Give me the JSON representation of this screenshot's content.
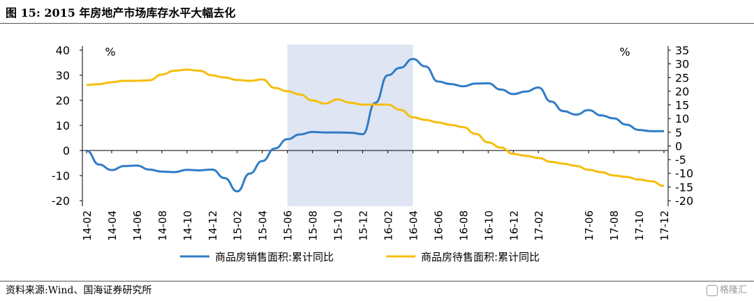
{
  "figure": {
    "title": "图 15:   2015 年房地产市场库存水平大幅去化",
    "source": "资料来源:Wind、国海证券研究所",
    "watermark": "格隆汇"
  },
  "chart_data": {
    "type": "line",
    "left_unit": "%",
    "right_unit": "%",
    "left_ylim": [
      -20,
      40
    ],
    "left_ticks": [
      -20,
      -10,
      0,
      10,
      20,
      30,
      40
    ],
    "right_ylim": [
      -20,
      35
    ],
    "right_ticks": [
      -20,
      -15,
      -10,
      -5,
      0,
      5,
      10,
      15,
      20,
      25,
      30,
      35
    ],
    "categories": [
      "14-02",
      "14-03",
      "14-04",
      "14-05",
      "14-06",
      "14-07",
      "14-08",
      "14-09",
      "14-10",
      "14-11",
      "14-12",
      "15-01",
      "15-02",
      "15-03",
      "15-04",
      "15-05",
      "15-06",
      "15-07",
      "15-08",
      "15-09",
      "15-10",
      "15-11",
      "15-12",
      "16-01",
      "16-02",
      "16-03",
      "16-04",
      "16-05",
      "16-06",
      "16-07",
      "16-08",
      "16-09",
      "16-10",
      "16-11",
      "16-12",
      "17-01",
      "17-02",
      "17-03",
      "17-04",
      "17-05",
      "17-06",
      "17-07",
      "17-08",
      "17-09",
      "17-10",
      "17-11",
      "17-12"
    ],
    "tick_labels": [
      "14-02",
      "14-04",
      "14-06",
      "14-08",
      "14-10",
      "14-12",
      "15-02",
      "15-04",
      "15-06",
      "15-08",
      "15-10",
      "15-12",
      "16-02",
      "16-04",
      "16-06",
      "16-08",
      "16-10",
      "16-12",
      "17-02",
      "17-06",
      "17-08",
      "17-10",
      "17-12"
    ],
    "tick_label_indices": [
      0,
      2,
      4,
      6,
      8,
      10,
      12,
      14,
      16,
      18,
      20,
      22,
      24,
      26,
      28,
      30,
      32,
      34,
      36,
      40,
      42,
      44,
      46
    ],
    "highlight_range": [
      "15-06",
      "16-04"
    ],
    "highlight_color": "#dfe5f3",
    "series": [
      {
        "name": "商品房销售面积:累计同比",
        "axis": "left",
        "color": "#2f7cc6",
        "values": [
          -0.1,
          -5.6,
          -7.8,
          -6.2,
          -6.0,
          -7.6,
          -8.4,
          -8.6,
          -7.7,
          -7.9,
          -7.6,
          -11.0,
          -16.3,
          -9.2,
          -4.2,
          0.8,
          4.5,
          6.4,
          7.4,
          7.2,
          7.2,
          7.1,
          6.5,
          19.0,
          30.0,
          33.0,
          36.5,
          33.5,
          27.5,
          26.5,
          25.6,
          26.7,
          26.8,
          24.3,
          22.5,
          23.5,
          25.1,
          19.5,
          15.7,
          14.3,
          16.1,
          14.0,
          12.8,
          10.3,
          8.2,
          7.7,
          7.7
        ]
      },
      {
        "name": "商品房待售面积:累计同比",
        "axis": "right",
        "color": "#f5be0c",
        "values": [
          22.3,
          22.6,
          23.3,
          23.8,
          23.8,
          24.0,
          26.1,
          27.5,
          27.9,
          27.5,
          25.8,
          25.0,
          24.1,
          23.8,
          24.3,
          21.2,
          20.0,
          18.8,
          16.6,
          15.5,
          17.0,
          15.8,
          15.1,
          15.1,
          15.1,
          13.2,
          10.5,
          9.5,
          8.6,
          7.7,
          6.9,
          4.4,
          1.3,
          -0.6,
          -2.9,
          -3.6,
          -4.4,
          -5.8,
          -6.5,
          -7.3,
          -8.7,
          -9.6,
          -10.8,
          -11.3,
          -12.3,
          -12.9,
          -14.6
        ]
      }
    ]
  }
}
